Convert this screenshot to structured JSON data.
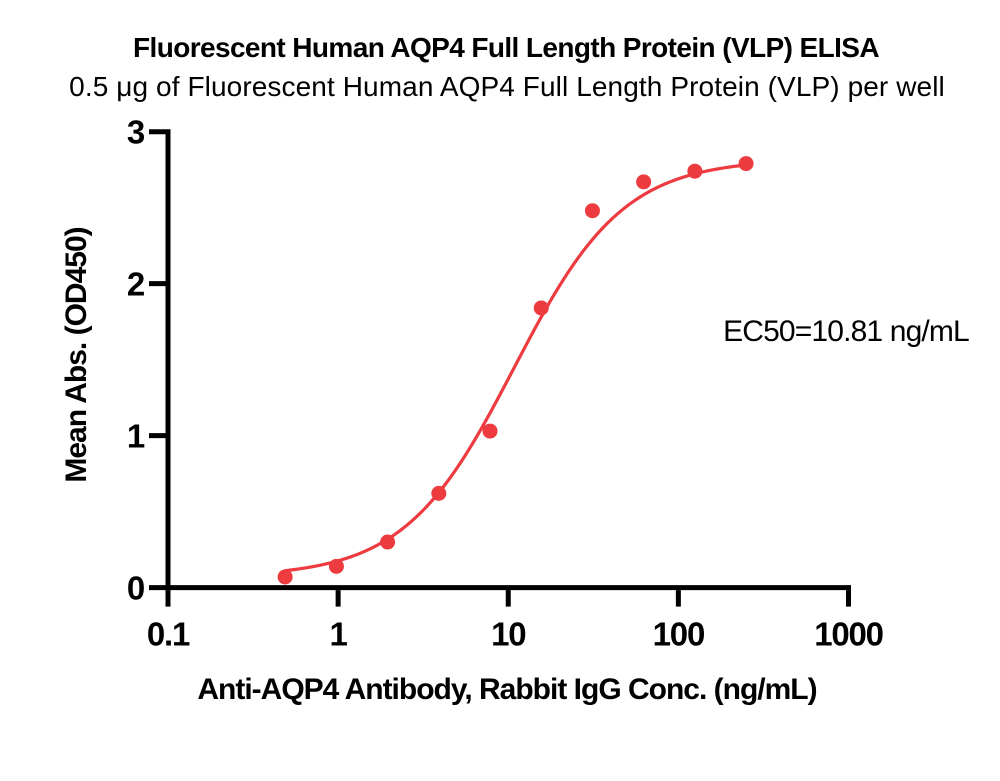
{
  "chart_data": {
    "type": "scatter",
    "title": "Fluorescent Human AQP4 Full Length Protein (VLP) ELISA",
    "subtitle": "0.5 μg of Fluorescent Human AQP4 Full Length Protein (VLP) per well",
    "xlabel": "Anti-AQP4 Antibody, Rabbit IgG Conc. (ng/mL)",
    "ylabel": "Mean Abs. (OD450)",
    "annotation": "EC50=10.81 ng/mL",
    "x_scale": "log10",
    "y_scale": "linear",
    "xlim": [
      0.1,
      1000
    ],
    "ylim": [
      0,
      3
    ],
    "x_tick_values": [
      0.1,
      1,
      10,
      100,
      1000
    ],
    "x_tick_labels": [
      "0.1",
      "1",
      "10",
      "100",
      "1000"
    ],
    "y_tick_values": [
      0,
      1,
      2,
      3
    ],
    "y_tick_labels": [
      "0",
      "1",
      "2",
      "3"
    ],
    "grid": false,
    "legend_position": "none",
    "series": [
      {
        "name": "Anti-AQP4 Antibody, Rabbit IgG",
        "marker": "circle",
        "x": [
          0.488,
          0.977,
          1.953,
          3.906,
          7.813,
          15.625,
          31.25,
          62.5,
          125,
          250
        ],
        "y": [
          0.07,
          0.14,
          0.3,
          0.62,
          1.03,
          1.84,
          2.48,
          2.67,
          2.74,
          2.79
        ]
      }
    ],
    "fit_curve": {
      "model": "4PL",
      "bottom": 0.07,
      "top": 2.82,
      "ec50": 10.81,
      "hill": 1.35,
      "x_range": [
        0.488,
        250
      ]
    },
    "colors": {
      "points": "#ED3B40",
      "curve": "#ED3B40",
      "axis": "#000000",
      "text": "#000000",
      "background": "#FFFFFF"
    }
  }
}
